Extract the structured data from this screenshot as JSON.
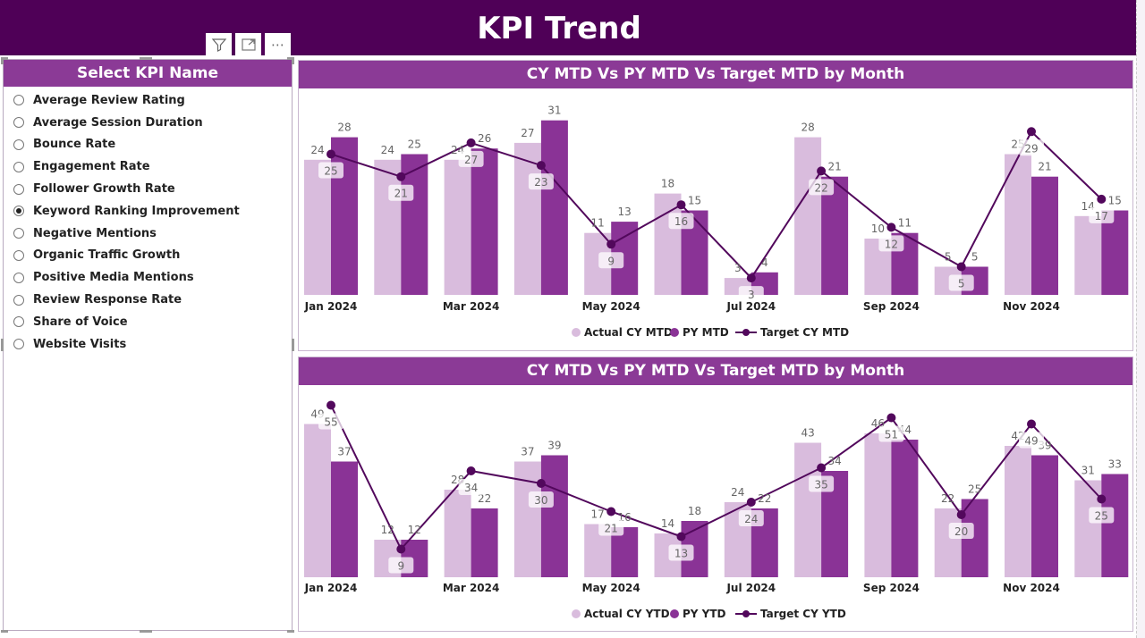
{
  "header": {
    "title": "KPI Trend"
  },
  "toolbar": {
    "icons": [
      "filter-icon",
      "focus-mode-icon",
      "more-options-icon"
    ]
  },
  "slicer": {
    "title": "Select KPI Name",
    "selected": "Keyword Ranking Improvement",
    "items": [
      "Average Review Rating",
      "Average Session Duration",
      "Bounce Rate",
      "Engagement Rate",
      "Follower Growth Rate",
      "Keyword Ranking Improvement",
      "Negative Mentions",
      "Organic Traffic Growth",
      "Positive Media Mentions",
      "Review Response Rate",
      "Share of Voice",
      "Website Visits"
    ]
  },
  "colors": {
    "header": "#4f0057",
    "title_bar": "#8b3a96",
    "actual": "#d9bcdd",
    "py": "#8a3396",
    "target": "#52085c"
  },
  "chart_data": [
    {
      "type": "bar",
      "title": "CY MTD Vs PY MTD Vs Target MTD by Month",
      "categories": [
        "Jan 2024",
        "Feb 2024",
        "Mar 2024",
        "Apr 2024",
        "May 2024",
        "Jun 2024",
        "Jul 2024",
        "Aug 2024",
        "Sep 2024",
        "Oct 2024",
        "Nov 2024",
        "Dec 2024"
      ],
      "tick_labels": [
        "Jan 2024",
        "",
        "Mar 2024",
        "",
        "May 2024",
        "",
        "Jul 2024",
        "",
        "Sep 2024",
        "",
        "Nov 2024",
        ""
      ],
      "series": [
        {
          "name": "Actual CY MTD",
          "kind": "bar",
          "values": [
            24,
            24,
            24,
            27,
            11,
            18,
            3,
            28,
            10,
            5,
            25,
            14
          ]
        },
        {
          "name": "PY MTD",
          "kind": "bar",
          "values": [
            28,
            25,
            26,
            31,
            13,
            15,
            4,
            21,
            11,
            5,
            21,
            15
          ]
        },
        {
          "name": "Target CY MTD",
          "kind": "line",
          "values": [
            25,
            21,
            27,
            23,
            9,
            16,
            3,
            22,
            12,
            5,
            29,
            17
          ]
        }
      ],
      "legend": "bottom"
    },
    {
      "type": "bar",
      "title": "CY MTD Vs PY MTD Vs Target MTD by Month",
      "categories": [
        "Jan 2024",
        "Feb 2024",
        "Mar 2024",
        "Apr 2024",
        "May 2024",
        "Jun 2024",
        "Jul 2024",
        "Aug 2024",
        "Sep 2024",
        "Oct 2024",
        "Nov 2024",
        "Dec 2024"
      ],
      "tick_labels": [
        "Jan 2024",
        "",
        "Mar 2024",
        "",
        "May 2024",
        "",
        "Jul 2024",
        "",
        "Sep 2024",
        "",
        "Nov 2024",
        ""
      ],
      "series": [
        {
          "name": "Actual CY YTD",
          "kind": "bar",
          "values": [
            49,
            12,
            28,
            37,
            17,
            14,
            24,
            43,
            46,
            22,
            42,
            31
          ]
        },
        {
          "name": "PY YTD",
          "kind": "bar",
          "values": [
            37,
            12,
            22,
            39,
            16,
            18,
            22,
            34,
            44,
            25,
            39,
            33
          ]
        },
        {
          "name": "Target CY YTD",
          "kind": "line",
          "values": [
            55,
            9,
            34,
            30,
            21,
            13,
            24,
            35,
            51,
            20,
            49,
            25
          ]
        }
      ],
      "legend": "bottom"
    }
  ]
}
